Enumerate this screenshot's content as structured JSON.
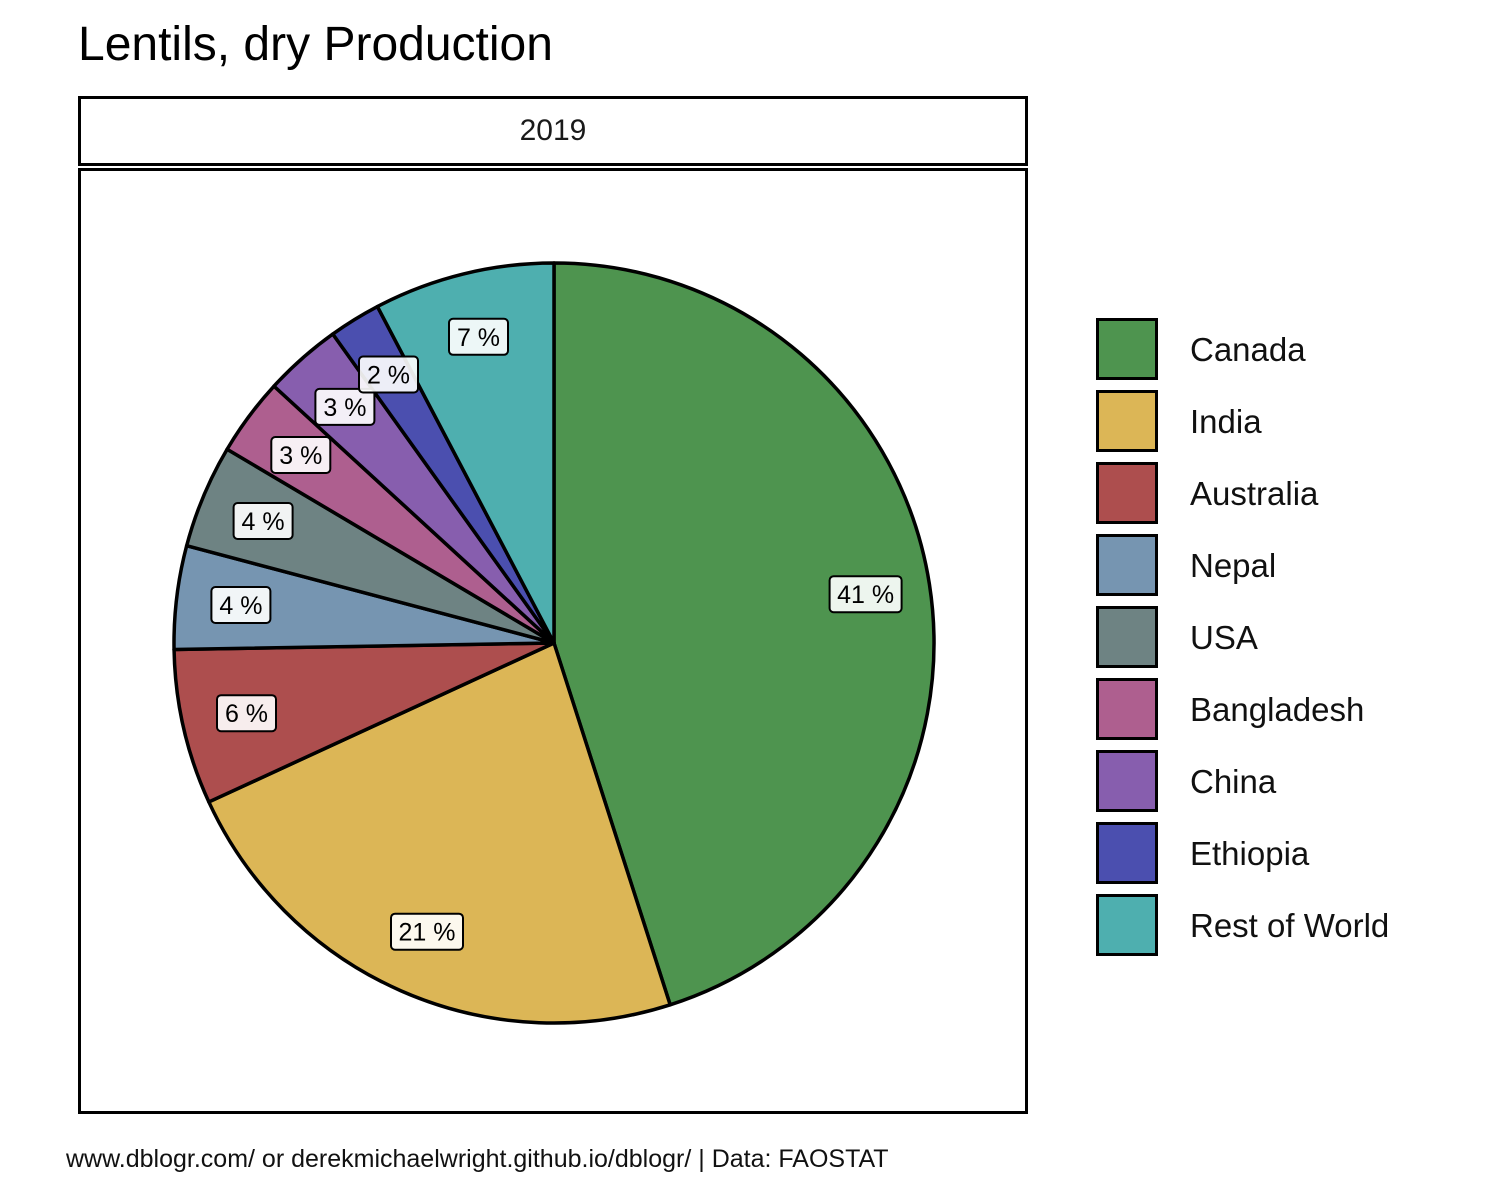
{
  "chart_data": {
    "type": "pie",
    "title": "Lentils, dry Production",
    "facet": "2019",
    "caption": "www.dblogr.com/ or derekmichaelwright.github.io/dblogr/ | Data: FAOSTAT",
    "unit": "%",
    "legend_position": "right",
    "slices": [
      {
        "name": "Canada",
        "value": 41,
        "label": "41 %",
        "color": "#4E944F"
      },
      {
        "name": "India",
        "value": 21,
        "label": "21 %",
        "color": "#DCB656"
      },
      {
        "name": "Australia",
        "value": 6,
        "label": "6 %",
        "color": "#AD4E4E"
      },
      {
        "name": "Nepal",
        "value": 4,
        "label": "4 %",
        "color": "#7695B1"
      },
      {
        "name": "USA",
        "value": 4,
        "label": "4 %",
        "color": "#6E8383"
      },
      {
        "name": "Bangladesh",
        "value": 3,
        "label": "3 %",
        "color": "#AE5F8F"
      },
      {
        "name": "China",
        "value": 3,
        "label": "3 %",
        "color": "#875EAE"
      },
      {
        "name": "Ethiopia",
        "value": 2,
        "label": "2 %",
        "color": "#4B4FAF"
      },
      {
        "name": "Rest of World",
        "value": 7,
        "label": "7 %",
        "color": "#4EAFAF"
      }
    ]
  }
}
